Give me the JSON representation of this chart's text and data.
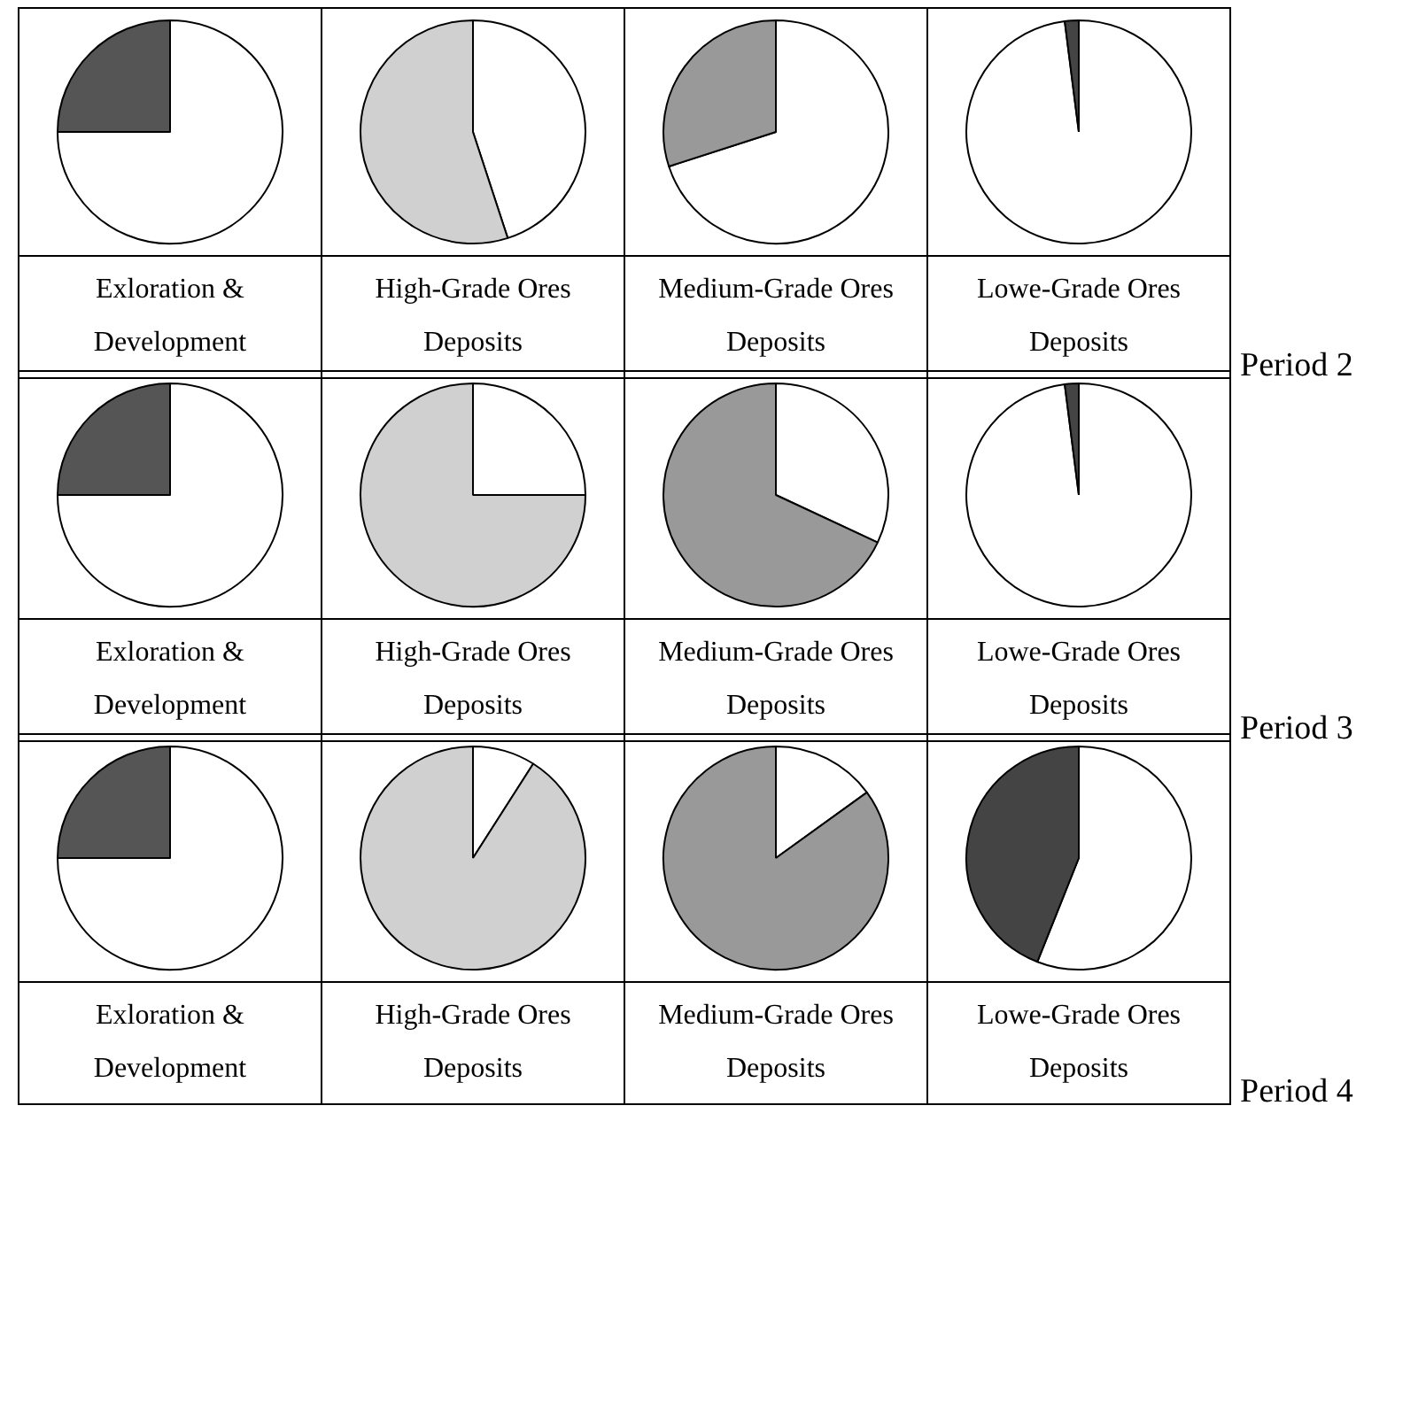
{
  "chart_data": [
    {
      "type": "pie",
      "title": "Exloration & Development",
      "categories": [
        null,
        null
      ],
      "values": [
        75,
        25
      ],
      "colors": [
        "#ffffff",
        "#555555"
      ]
    },
    {
      "type": "pie",
      "title": "High-Grade Ores Deposits",
      "categories": [
        null,
        null
      ],
      "values": [
        45,
        55
      ],
      "colors": [
        "#ffffff",
        "#d0d0d0"
      ]
    },
    {
      "type": "pie",
      "title": "Medium-Grade Ores Deposits",
      "categories": [
        null,
        null
      ],
      "values": [
        70,
        30
      ],
      "colors": [
        "#ffffff",
        "#999999"
      ]
    },
    {
      "type": "pie",
      "title": "Lowe-Grade Ores Deposits",
      "categories": [
        null,
        null
      ],
      "values": [
        98,
        2
      ],
      "colors": [
        "#ffffff",
        "#444444"
      ],
      "annotations": [
        "Period 2"
      ]
    },
    {
      "type": "pie",
      "title": "Exloration & Development",
      "categories": [
        null,
        null
      ],
      "values": [
        75,
        25
      ],
      "colors": [
        "#ffffff",
        "#555555"
      ]
    },
    {
      "type": "pie",
      "title": "High-Grade Ores Deposits",
      "categories": [
        null,
        null
      ],
      "values": [
        25,
        75
      ],
      "colors": [
        "#ffffff",
        "#d0d0d0"
      ]
    },
    {
      "type": "pie",
      "title": "Medium-Grade Ores Deposits",
      "categories": [
        null,
        null
      ],
      "values": [
        32,
        68
      ],
      "colors": [
        "#ffffff",
        "#999999"
      ]
    },
    {
      "type": "pie",
      "title": "Lowe-Grade Ores Deposits",
      "categories": [
        null,
        null
      ],
      "values": [
        98,
        2
      ],
      "colors": [
        "#ffffff",
        "#444444"
      ],
      "annotations": [
        "Period 3"
      ]
    },
    {
      "type": "pie",
      "title": "Exloration & Development",
      "categories": [
        null,
        null
      ],
      "values": [
        75,
        25
      ],
      "colors": [
        "#ffffff",
        "#555555"
      ]
    },
    {
      "type": "pie",
      "title": "High-Grade Ores Deposits",
      "categories": [
        null,
        null
      ],
      "values": [
        9,
        91
      ],
      "colors": [
        "#ffffff",
        "#d0d0d0"
      ]
    },
    {
      "type": "pie",
      "title": "Medium-Grade Ores Deposits",
      "categories": [
        null,
        null
      ],
      "values": [
        15,
        85
      ],
      "colors": [
        "#ffffff",
        "#999999"
      ]
    },
    {
      "type": "pie",
      "title": "Lowe-Grade Ores Deposits",
      "categories": [
        null,
        null
      ],
      "values": [
        56,
        44
      ],
      "colors": [
        "#ffffff",
        "#444444"
      ],
      "annotations": [
        "Period 4"
      ]
    }
  ]
}
